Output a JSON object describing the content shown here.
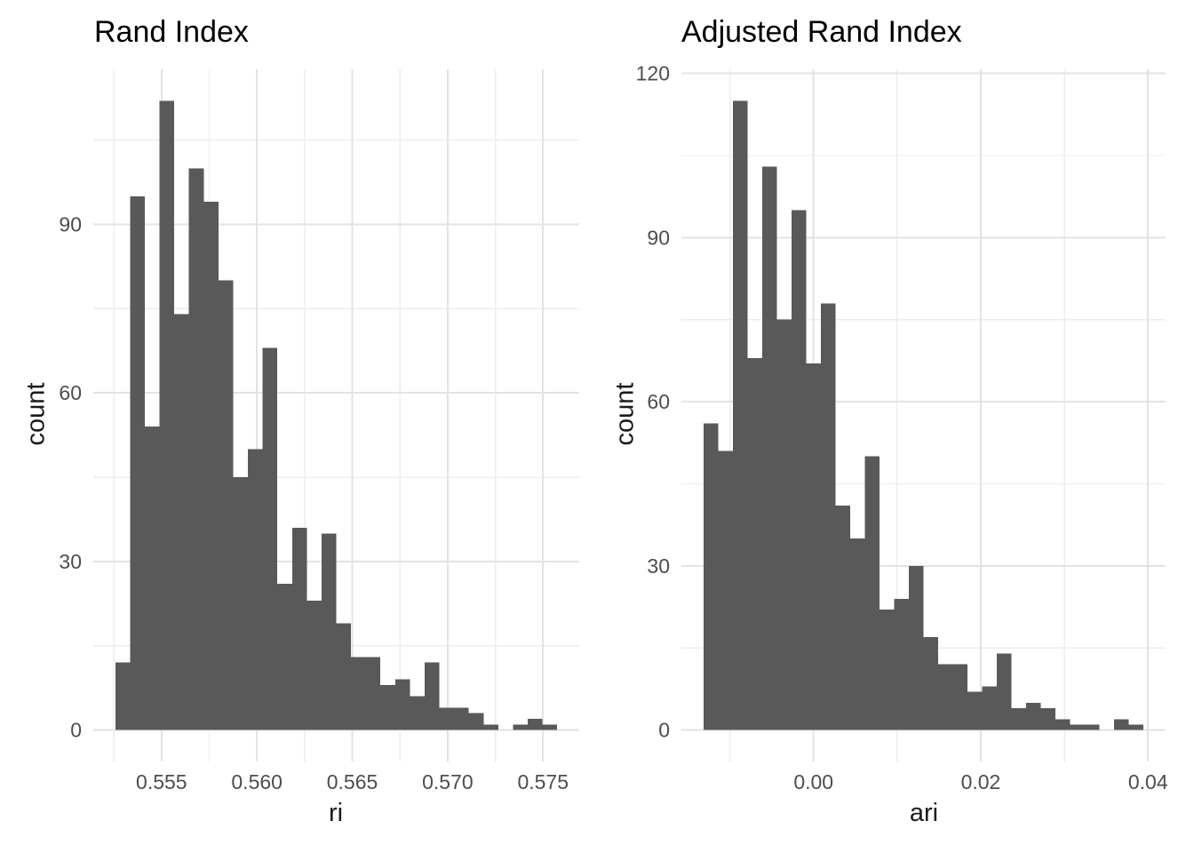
{
  "figure": {
    "background": "#FFFFFF",
    "kind": "side-by-side histograms"
  },
  "palette": {
    "bar_fill": "#595959",
    "grid_major": "#E3E3E3",
    "grid_minor": "#EDEDED",
    "axis_text": "#4D4D4D",
    "axis_title": "#1A1A1A",
    "title_color": "#000000"
  },
  "chart_data": [
    {
      "type": "bar",
      "subtype": "histogram",
      "title": "Rand Index",
      "xlabel": "ri",
      "ylabel": "count",
      "grid": true,
      "legend_position": "none",
      "bin_start": 0.55258,
      "bin_width": 0.000772,
      "counts": [
        12,
        95,
        54,
        112,
        74,
        100,
        94,
        80,
        45,
        50,
        68,
        26,
        36,
        23,
        35,
        19,
        13,
        13,
        8,
        9,
        6,
        12,
        4,
        4,
        3,
        1,
        0,
        1,
        2,
        1
      ],
      "xlim": [
        0.551422,
        0.576898
      ],
      "ylim": [
        -5.6,
        117.6
      ],
      "x_major_ticks": [
        {
          "value": 0.555,
          "label": "0.555"
        },
        {
          "value": 0.56,
          "label": "0.560"
        },
        {
          "value": 0.565,
          "label": "0.565"
        },
        {
          "value": 0.57,
          "label": "0.570"
        },
        {
          "value": 0.575,
          "label": "0.575"
        }
      ],
      "x_minor_ticks": [
        0.5525,
        0.5575,
        0.5625,
        0.5675,
        0.5725
      ],
      "y_major_ticks": [
        {
          "value": 0,
          "label": "0"
        },
        {
          "value": 30,
          "label": "30"
        },
        {
          "value": 60,
          "label": "60"
        },
        {
          "value": 90,
          "label": "90"
        }
      ],
      "y_minor_ticks": [
        15,
        45,
        75,
        105
      ]
    },
    {
      "type": "bar",
      "subtype": "histogram",
      "title": "Adjusted Rand Index",
      "xlabel": "ari",
      "ylabel": "count",
      "grid": true,
      "legend_position": "none",
      "bin_start": -0.013165,
      "bin_width": 0.0017544,
      "counts": [
        56,
        51,
        115,
        68,
        103,
        75,
        95,
        67,
        78,
        41,
        35,
        50,
        22,
        24,
        30,
        17,
        12,
        12,
        7,
        8,
        14,
        4,
        5,
        4,
        2,
        1,
        1,
        0,
        2,
        1
      ],
      "xlim": [
        -0.0157966,
        0.0420986
      ],
      "ylim": [
        -5.75,
        120.75
      ],
      "x_major_ticks": [
        {
          "value": 0.0,
          "label": "0.00"
        },
        {
          "value": 0.02,
          "label": "0.02"
        },
        {
          "value": 0.04,
          "label": "0.04"
        }
      ],
      "x_minor_ticks": [
        -0.01,
        0.01,
        0.03
      ],
      "y_major_ticks": [
        {
          "value": 0,
          "label": "0"
        },
        {
          "value": 30,
          "label": "30"
        },
        {
          "value": 60,
          "label": "60"
        },
        {
          "value": 90,
          "label": "90"
        },
        {
          "value": 120,
          "label": "120"
        }
      ],
      "y_minor_ticks": [
        15,
        45,
        75,
        105
      ]
    }
  ]
}
